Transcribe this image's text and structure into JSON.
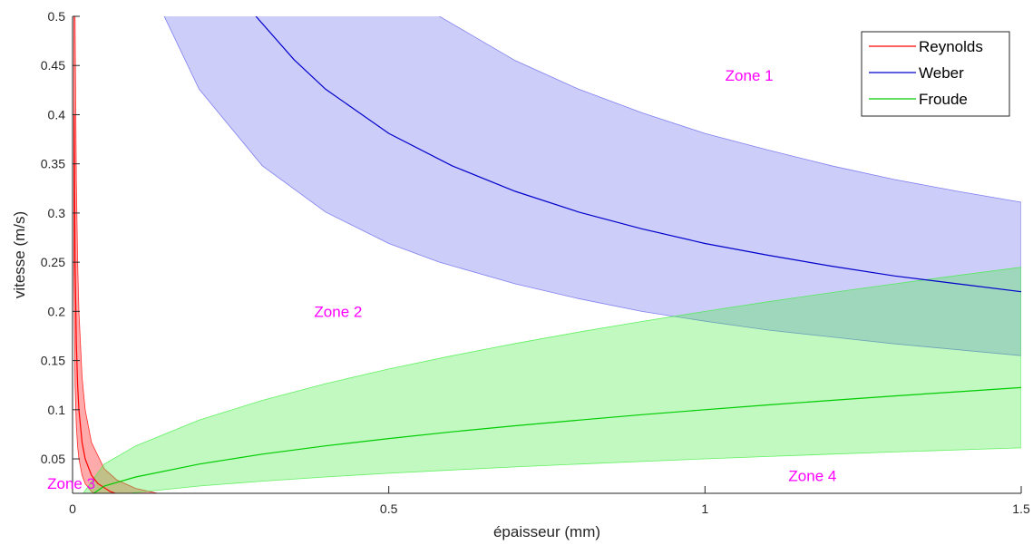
{
  "chart_data": {
    "type": "area",
    "title": "",
    "xlabel": "épaisseur (mm)",
    "ylabel": "vitesse (m/s)",
    "xlim": [
      0,
      1.5
    ],
    "ylim": [
      0.015,
      0.5
    ],
    "x_ticks": [
      0,
      0.5,
      1,
      1.5
    ],
    "x_tick_labels": [
      "0",
      "0.5",
      "1",
      "1.5"
    ],
    "y_ticks": [
      0.05,
      0.1,
      0.15,
      0.2,
      0.25,
      0.3,
      0.35,
      0.4,
      0.45,
      0.5
    ],
    "y_tick_labels": [
      "0.05",
      "0.1",
      "0.15",
      "0.2",
      "0.25",
      "0.3",
      "0.35",
      "0.4",
      "0.45",
      "0.5"
    ],
    "grid": false,
    "legend_position": "top-right",
    "series": [
      {
        "name": "Reynolds",
        "color": "#ff0000",
        "band_color": "#ff0000",
        "x": [
          0.0025,
          0.004,
          0.006,
          0.008,
          0.01,
          0.015,
          0.02,
          0.03,
          0.04,
          0.06,
          0.08,
          0.1
        ],
        "y": [
          0.4,
          0.25,
          0.167,
          0.125,
          0.1,
          0.0667,
          0.05,
          0.0333,
          0.025,
          0.0167,
          0.0125,
          0.01
        ],
        "x_band": [
          0.002,
          0.004,
          0.006,
          0.008,
          0.01,
          0.015,
          0.02,
          0.03,
          0.05,
          0.07,
          0.1,
          0.14,
          0.2
        ],
        "y_low": [
          0.25,
          0.125,
          0.083,
          0.0625,
          0.05,
          0.0333,
          0.025,
          0.0167,
          0.01,
          0.007,
          0.005,
          0.004,
          0.0025
        ],
        "y_high": [
          0.999,
          0.5,
          0.333,
          0.25,
          0.2,
          0.133,
          0.1,
          0.0667,
          0.04,
          0.0286,
          0.02,
          0.0143,
          0.01
        ]
      },
      {
        "name": "Weber",
        "color": "#0000cc",
        "band_color": "#6666ee",
        "x": [
          0.29,
          0.35,
          0.4,
          0.5,
          0.6,
          0.7,
          0.8,
          0.9,
          1.0,
          1.1,
          1.2,
          1.3,
          1.4,
          1.5
        ],
        "y": [
          0.5,
          0.456,
          0.426,
          0.381,
          0.348,
          0.322,
          0.301,
          0.284,
          0.269,
          0.257,
          0.246,
          0.236,
          0.228,
          0.22
        ],
        "x_band": [
          0.145,
          0.2,
          0.3,
          0.4,
          0.5,
          0.58,
          0.7,
          0.8,
          0.9,
          1.0,
          1.1,
          1.2,
          1.3,
          1.4,
          1.5
        ],
        "y_low": [
          0.5,
          0.426,
          0.348,
          0.301,
          0.269,
          0.25,
          0.228,
          0.213,
          0.2,
          0.19,
          0.181,
          0.174,
          0.167,
          0.161,
          0.155
        ],
        "y_high": [
          0.999,
          0.999,
          0.999,
          0.999,
          0.999,
          0.5,
          0.455,
          0.426,
          0.402,
          0.381,
          0.364,
          0.348,
          0.334,
          0.322,
          0.311
        ]
      },
      {
        "name": "Froude",
        "color": "#00cc00",
        "band_color": "#44ee44",
        "x": [
          0,
          0.05,
          0.1,
          0.2,
          0.3,
          0.4,
          0.5,
          0.6,
          0.7,
          0.8,
          0.9,
          1.0,
          1.1,
          1.2,
          1.3,
          1.4,
          1.5
        ],
        "y": [
          0.0,
          0.0224,
          0.0316,
          0.0447,
          0.0548,
          0.0632,
          0.0707,
          0.0775,
          0.0837,
          0.0894,
          0.0949,
          0.1,
          0.1049,
          0.1095,
          0.114,
          0.1183,
          0.1225
        ],
        "x_band": [
          0,
          0.05,
          0.1,
          0.2,
          0.3,
          0.4,
          0.5,
          0.6,
          0.7,
          0.8,
          0.9,
          1.0,
          1.1,
          1.2,
          1.3,
          1.4,
          1.5
        ],
        "y_low": [
          0.0,
          0.0112,
          0.0158,
          0.0224,
          0.0274,
          0.0316,
          0.0354,
          0.0387,
          0.0418,
          0.0447,
          0.0474,
          0.05,
          0.0524,
          0.0548,
          0.057,
          0.0592,
          0.0612
        ],
        "y_high": [
          0.0,
          0.0447,
          0.0632,
          0.0894,
          0.1095,
          0.1265,
          0.1414,
          0.1549,
          0.1673,
          0.1789,
          0.1897,
          0.2,
          0.2098,
          0.2191,
          0.228,
          0.2366,
          0.2449
        ]
      }
    ],
    "annotations": [
      {
        "text": "Zone 1",
        "x": 1.07,
        "y": 0.44
      },
      {
        "text": "Zone 2",
        "x": 0.42,
        "y": 0.2
      },
      {
        "text": "Zone 3",
        "x": -0.002,
        "y": 0.025
      },
      {
        "text": "Zone 4",
        "x": 1.17,
        "y": 0.033
      }
    ],
    "annotation_color": "#ff00ff"
  }
}
